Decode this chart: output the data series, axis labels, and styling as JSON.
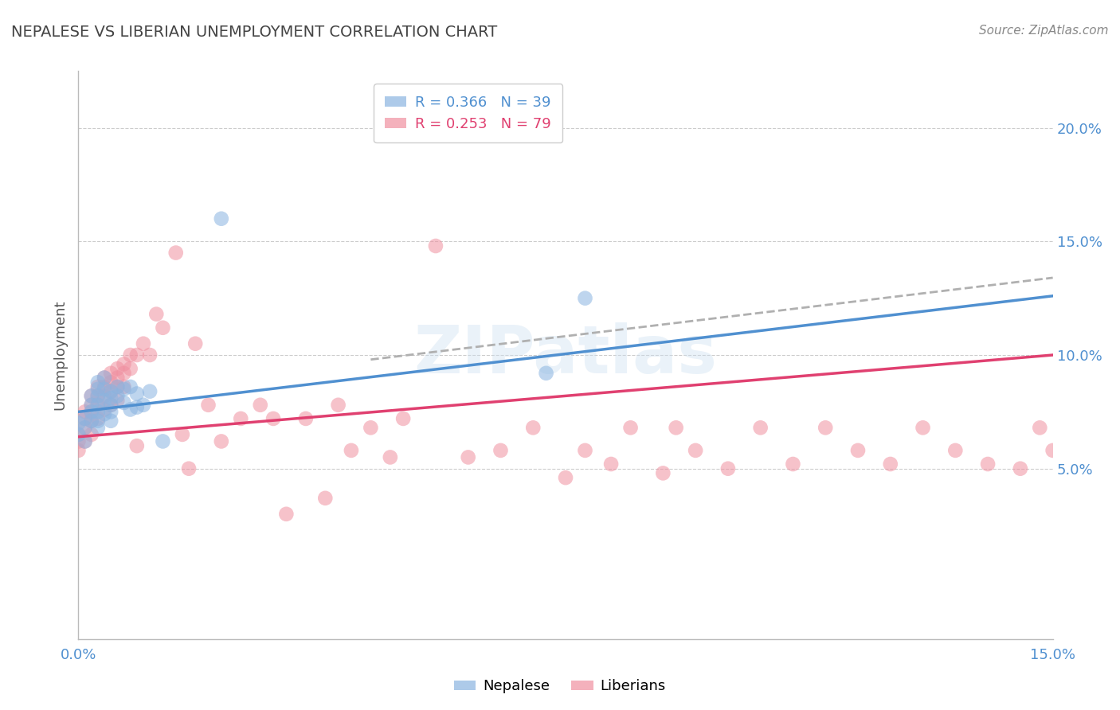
{
  "title": "NEPALESE VS LIBERIAN UNEMPLOYMENT CORRELATION CHART",
  "source": "Source: ZipAtlas.com",
  "ylabel": "Unemployment",
  "watermark": "ZIPatlas",
  "xlim": [
    0.0,
    0.15
  ],
  "ylim": [
    -0.025,
    0.225
  ],
  "x_ticks": [
    0.0,
    0.15
  ],
  "x_tick_labels": [
    "0.0%",
    "15.0%"
  ],
  "y_ticks_right": [
    0.05,
    0.1,
    0.15,
    0.2
  ],
  "y_tick_labels_right": [
    "5.0%",
    "10.0%",
    "15.0%",
    "20.0%"
  ],
  "legend_r1": "R = 0.366   N = 39",
  "legend_r2": "R = 0.253   N = 79",
  "nepalese_color": "#8ab4e0",
  "liberian_color": "#f090a0",
  "nepalese_line_color": "#5090d0",
  "liberian_line_color": "#e04070",
  "dashed_line_color": "#b0b0b0",
  "background_color": "#ffffff",
  "grid_color": "#cccccc",
  "title_color": "#444444",
  "right_tick_color": "#5090d0",
  "source_color": "#888888",
  "nepalese_x": [
    0.0,
    0.0,
    0.001,
    0.001,
    0.001,
    0.002,
    0.002,
    0.002,
    0.002,
    0.003,
    0.003,
    0.003,
    0.003,
    0.003,
    0.003,
    0.003,
    0.004,
    0.004,
    0.004,
    0.004,
    0.005,
    0.005,
    0.005,
    0.005,
    0.005,
    0.006,
    0.006,
    0.007,
    0.007,
    0.008,
    0.008,
    0.009,
    0.009,
    0.01,
    0.011,
    0.013,
    0.022,
    0.072,
    0.078
  ],
  "nepalese_y": [
    0.07,
    0.065,
    0.072,
    0.068,
    0.062,
    0.082,
    0.078,
    0.075,
    0.071,
    0.088,
    0.085,
    0.082,
    0.078,
    0.075,
    0.071,
    0.068,
    0.09,
    0.085,
    0.08,
    0.074,
    0.084,
    0.081,
    0.078,
    0.075,
    0.071,
    0.086,
    0.082,
    0.085,
    0.079,
    0.086,
    0.076,
    0.083,
    0.077,
    0.078,
    0.084,
    0.062,
    0.16,
    0.092,
    0.125
  ],
  "liberian_x": [
    0.0,
    0.0,
    0.0,
    0.001,
    0.001,
    0.001,
    0.001,
    0.002,
    0.002,
    0.002,
    0.002,
    0.002,
    0.003,
    0.003,
    0.003,
    0.003,
    0.004,
    0.004,
    0.004,
    0.004,
    0.005,
    0.005,
    0.005,
    0.005,
    0.006,
    0.006,
    0.006,
    0.006,
    0.007,
    0.007,
    0.007,
    0.008,
    0.008,
    0.009,
    0.009,
    0.01,
    0.011,
    0.012,
    0.013,
    0.015,
    0.016,
    0.017,
    0.018,
    0.02,
    0.022,
    0.025,
    0.028,
    0.03,
    0.032,
    0.035,
    0.038,
    0.04,
    0.042,
    0.045,
    0.048,
    0.05,
    0.055,
    0.06,
    0.065,
    0.07,
    0.075,
    0.078,
    0.082,
    0.085,
    0.09,
    0.092,
    0.095,
    0.1,
    0.105,
    0.11,
    0.115,
    0.12,
    0.125,
    0.13,
    0.135,
    0.14,
    0.145,
    0.148,
    0.15
  ],
  "liberian_y": [
    0.065,
    0.062,
    0.058,
    0.075,
    0.072,
    0.068,
    0.062,
    0.082,
    0.078,
    0.075,
    0.071,
    0.065,
    0.086,
    0.082,
    0.078,
    0.072,
    0.09,
    0.086,
    0.082,
    0.076,
    0.092,
    0.088,
    0.084,
    0.078,
    0.094,
    0.09,
    0.086,
    0.08,
    0.096,
    0.092,
    0.086,
    0.1,
    0.094,
    0.1,
    0.06,
    0.105,
    0.1,
    0.118,
    0.112,
    0.145,
    0.065,
    0.05,
    0.105,
    0.078,
    0.062,
    0.072,
    0.078,
    0.072,
    0.03,
    0.072,
    0.037,
    0.078,
    0.058,
    0.068,
    0.055,
    0.072,
    0.148,
    0.055,
    0.058,
    0.068,
    0.046,
    0.058,
    0.052,
    0.068,
    0.048,
    0.068,
    0.058,
    0.05,
    0.068,
    0.052,
    0.068,
    0.058,
    0.052,
    0.068,
    0.058,
    0.052,
    0.05,
    0.068,
    0.058
  ],
  "nepalese_line_x": [
    0.0,
    0.15
  ],
  "nepalese_line_y": [
    0.075,
    0.126
  ],
  "liberian_line_x": [
    0.0,
    0.15
  ],
  "liberian_line_y": [
    0.064,
    0.1
  ],
  "dashed_line_x": [
    0.045,
    0.15
  ],
  "dashed_line_y": [
    0.098,
    0.134
  ]
}
